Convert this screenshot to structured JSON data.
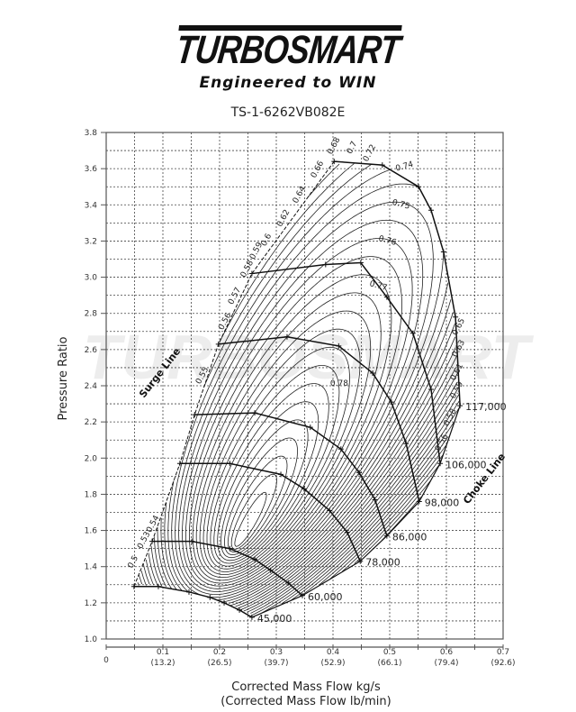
{
  "logo": {
    "brand": "TURBOSMART",
    "tagline": "Engineered to WIN"
  },
  "chart_data": {
    "type": "line",
    "title": "TS-1-6262VB082E",
    "xlabel": "Corrected Mass Flow kg/s",
    "xlabel2": "(Corrected Mass Flow lb/min)",
    "ylabel": "Pressure Ratio",
    "xlim": [
      0,
      0.7
    ],
    "ylim": [
      1.0,
      3.8
    ],
    "grid": true,
    "x_origin_label": "0",
    "x_ticks": [
      {
        "v": 0.1,
        "label": "0.1",
        "sub": "(13.2)"
      },
      {
        "v": 0.2,
        "label": "0.2",
        "sub": "(26.5)"
      },
      {
        "v": 0.3,
        "label": "0.3",
        "sub": "(39.7)"
      },
      {
        "v": 0.4,
        "label": "0.4",
        "sub": "(52.9)"
      },
      {
        "v": 0.5,
        "label": "0.5",
        "sub": "(66.1)"
      },
      {
        "v": 0.6,
        "label": "0.6",
        "sub": "(79.4)"
      },
      {
        "v": 0.7,
        "label": "0.7",
        "sub": "(92.6)"
      }
    ],
    "y_ticks": [
      "1.0",
      "1.2",
      "1.4",
      "1.6",
      "1.8",
      "2.0",
      "2.2",
      "2.4",
      "2.6",
      "2.8",
      "3.0",
      "3.2",
      "3.4",
      "3.6",
      "3.8"
    ],
    "surge_line_label": "Surge Line",
    "choke_line_label": "Choke Line",
    "speed_lines": [
      {
        "name": "45,000",
        "points": [
          [
            0.049,
            1.29
          ],
          [
            0.092,
            1.29
          ],
          [
            0.146,
            1.26
          ],
          [
            0.183,
            1.23
          ],
          [
            0.208,
            1.2
          ],
          [
            0.235,
            1.16
          ],
          [
            0.257,
            1.12
          ]
        ]
      },
      {
        "name": "60,000",
        "points": [
          [
            0.081,
            1.54
          ],
          [
            0.151,
            1.54
          ],
          [
            0.218,
            1.5
          ],
          [
            0.262,
            1.44
          ],
          [
            0.29,
            1.38
          ],
          [
            0.321,
            1.31
          ],
          [
            0.346,
            1.24
          ]
        ]
      },
      {
        "name": "78,000",
        "points": [
          [
            0.13,
            1.97
          ],
          [
            0.218,
            1.97
          ],
          [
            0.308,
            1.91
          ],
          [
            0.349,
            1.83
          ],
          [
            0.394,
            1.71
          ],
          [
            0.425,
            1.59
          ],
          [
            0.448,
            1.43
          ]
        ]
      },
      {
        "name": "86,000",
        "points": [
          [
            0.156,
            2.24
          ],
          [
            0.262,
            2.25
          ],
          [
            0.36,
            2.17
          ],
          [
            0.414,
            2.05
          ],
          [
            0.446,
            1.92
          ],
          [
            0.474,
            1.77
          ],
          [
            0.495,
            1.57
          ]
        ]
      },
      {
        "name": "98,000",
        "points": [
          [
            0.198,
            2.63
          ],
          [
            0.319,
            2.67
          ],
          [
            0.41,
            2.62
          ],
          [
            0.47,
            2.47
          ],
          [
            0.503,
            2.31
          ],
          [
            0.529,
            2.08
          ],
          [
            0.552,
            1.76
          ]
        ]
      },
      {
        "name": "106,000",
        "points": [
          [
            0.257,
            3.02
          ],
          [
            0.387,
            3.07
          ],
          [
            0.449,
            3.08
          ],
          [
            0.495,
            2.89
          ],
          [
            0.541,
            2.69
          ],
          [
            0.573,
            2.38
          ],
          [
            0.589,
            1.97
          ]
        ]
      },
      {
        "name": "117,000",
        "points": [
          [
            0.402,
            3.64
          ],
          [
            0.487,
            3.62
          ],
          [
            0.551,
            3.5
          ],
          [
            0.573,
            3.37
          ],
          [
            0.595,
            3.14
          ],
          [
            0.616,
            2.78
          ],
          [
            0.624,
            2.29
          ]
        ]
      }
    ],
    "efficiency_labels": [
      {
        "t": "0.5",
        "x": 0.051,
        "y": 1.42
      },
      {
        "t": "0.53",
        "x": 0.07,
        "y": 1.54
      },
      {
        "t": "0.54",
        "x": 0.086,
        "y": 1.63
      },
      {
        "t": "0.55",
        "x": 0.173,
        "y": 2.45
      },
      {
        "t": "0.56",
        "x": 0.213,
        "y": 2.75
      },
      {
        "t": "0.57",
        "x": 0.23,
        "y": 2.89
      },
      {
        "t": "0.58",
        "x": 0.252,
        "y": 3.04
      },
      {
        "t": "0.59",
        "x": 0.268,
        "y": 3.14
      },
      {
        "t": "0.6",
        "x": 0.286,
        "y": 3.2
      },
      {
        "t": "0.62",
        "x": 0.316,
        "y": 3.32
      },
      {
        "t": "0.64",
        "x": 0.344,
        "y": 3.45
      },
      {
        "t": "0.66",
        "x": 0.376,
        "y": 3.59
      },
      {
        "t": "0.68",
        "x": 0.405,
        "y": 3.72
      },
      {
        "t": "0.7",
        "x": 0.437,
        "y": 3.71
      },
      {
        "t": "0.72",
        "x": 0.468,
        "y": 3.68
      },
      {
        "t": "0.74",
        "x": 0.527,
        "y": 3.6
      },
      {
        "t": "0.75",
        "x": 0.519,
        "y": 3.39
      },
      {
        "t": "0.76",
        "x": 0.495,
        "y": 3.19
      },
      {
        "t": "0.77",
        "x": 0.479,
        "y": 2.94
      },
      {
        "t": "0.78",
        "x": 0.411,
        "y": 2.4
      },
      {
        "t": "0.65",
        "x": 0.625,
        "y": 2.72
      },
      {
        "t": "0.63",
        "x": 0.625,
        "y": 2.6
      },
      {
        "t": "0.61",
        "x": 0.622,
        "y": 2.47
      },
      {
        "t": "0.59",
        "x": 0.622,
        "y": 2.37
      },
      {
        "t": "0.58",
        "x": 0.61,
        "y": 2.22
      },
      {
        "t": "0.56",
        "x": 0.595,
        "y": 2.08
      }
    ]
  }
}
